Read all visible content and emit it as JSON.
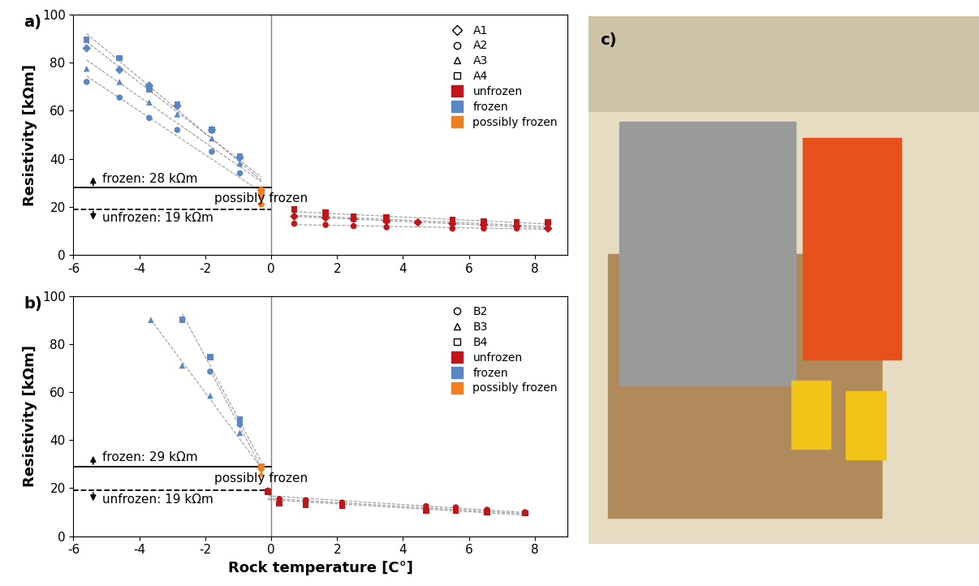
{
  "chart_data": [
    {
      "type": "scatter",
      "title": "a)",
      "ylabel": "Resistivity [kΩm]",
      "xlim": [
        -6,
        9
      ],
      "xticks": [
        -6,
        -4,
        -2,
        0,
        2,
        4,
        6,
        8
      ],
      "ylim": [
        0,
        100
      ],
      "yticks": [
        0,
        20,
        40,
        60,
        80,
        100
      ],
      "vline": 0,
      "legend": "upper right",
      "classes": [
        {
          "name": "unfrozen",
          "color": "#C0161B"
        },
        {
          "name": "frozen",
          "color": "#5B86C5"
        },
        {
          "name": "possibly frozen",
          "color": "#F07F22"
        }
      ],
      "thresholds": [
        {
          "value": 28,
          "label": "frozen: 28 kΩm",
          "line_style": "solid",
          "direction": "up"
        },
        {
          "value": 19,
          "label": "unfrozen: 19 kΩm",
          "line_style": "dashed",
          "direction": "down"
        }
      ],
      "between_label": "possibly frozen",
      "series": [
        {
          "name": "A1",
          "marker": "diamond",
          "line_style": "dashed",
          "x": [
            -5.6,
            -4.6,
            -3.7,
            -2.85,
            -1.8,
            -0.95,
            -0.3,
            0.7,
            1.65,
            2.5,
            3.5,
            4.45,
            5.5,
            6.45,
            7.45,
            8.4
          ],
          "values": [
            86,
            77,
            70.5,
            62,
            52,
            40.5,
            27,
            16,
            15.5,
            15,
            14,
            13.5,
            13,
            12.5,
            12,
            11
          ],
          "colors": [
            "#5B86C5",
            "#5B86C5",
            "#5B86C5",
            "#5B86C5",
            "#5B86C5",
            "#5B86C5",
            "#F07F22",
            "#C0161B",
            "#C0161B",
            "#C0161B",
            "#C0161B",
            "#C0161B",
            "#C0161B",
            "#C0161B",
            "#C0161B",
            "#C0161B"
          ]
        },
        {
          "name": "A2",
          "marker": "circle",
          "line_style": "dashed",
          "x": [
            -5.6,
            -4.6,
            -3.7,
            -2.85,
            -1.8,
            -0.95,
            -0.3,
            0.7,
            1.65,
            2.5,
            3.5,
            5.5,
            6.45,
            7.45,
            8.4
          ],
          "values": [
            72,
            65.5,
            57,
            52,
            43,
            34,
            21,
            13,
            12.5,
            12,
            11.5,
            11,
            11,
            11,
            11
          ],
          "colors": [
            "#5B86C5",
            "#5B86C5",
            "#5B86C5",
            "#5B86C5",
            "#5B86C5",
            "#5B86C5",
            "#F07F22",
            "#C0161B",
            "#C0161B",
            "#C0161B",
            "#C0161B",
            "#C0161B",
            "#C0161B",
            "#C0161B",
            "#C0161B"
          ]
        },
        {
          "name": "A3",
          "marker": "triangle",
          "line_style": "dashed",
          "x": [
            -5.6,
            -4.6,
            -3.7,
            -2.85,
            -1.8,
            -0.95,
            -0.3,
            0.7,
            1.65,
            2.5,
            3.5,
            5.5,
            6.45,
            7.45,
            8.4
          ],
          "values": [
            77.5,
            72,
            63.5,
            58.5,
            48.5,
            38,
            24.5,
            17,
            16,
            15,
            14.5,
            13.5,
            13,
            12.5,
            12
          ],
          "colors": [
            "#5B86C5",
            "#5B86C5",
            "#5B86C5",
            "#5B86C5",
            "#5B86C5",
            "#5B86C5",
            "#F07F22",
            "#C0161B",
            "#C0161B",
            "#C0161B",
            "#C0161B",
            "#C0161B",
            "#C0161B",
            "#C0161B",
            "#C0161B"
          ]
        },
        {
          "name": "A4",
          "marker": "square",
          "line_style": "dashed",
          "x": [
            -5.6,
            -4.6,
            -3.7,
            -2.85,
            -1.8,
            -0.95,
            -0.3,
            0.7,
            1.65,
            2.5,
            3.5,
            5.5,
            6.45,
            7.45,
            8.4
          ],
          "values": [
            89.5,
            82,
            69,
            62.5,
            52,
            41,
            25.5,
            19,
            17.5,
            16,
            15.5,
            14.5,
            14,
            13.5,
            13.5
          ],
          "colors": [
            "#5B86C5",
            "#5B86C5",
            "#5B86C5",
            "#5B86C5",
            "#5B86C5",
            "#5B86C5",
            "#F07F22",
            "#C0161B",
            "#C0161B",
            "#C0161B",
            "#C0161B",
            "#C0161B",
            "#C0161B",
            "#C0161B",
            "#C0161B"
          ]
        }
      ]
    },
    {
      "type": "scatter",
      "title": "b)",
      "xlabel": "Rock temperature [C°]",
      "ylabel": "Resistivity [kΩm]",
      "xlim": [
        -6,
        9
      ],
      "xticks": [
        -6,
        -4,
        -2,
        0,
        2,
        4,
        6,
        8
      ],
      "ylim": [
        0,
        100
      ],
      "yticks": [
        0,
        20,
        40,
        60,
        80,
        100
      ],
      "vline": 0,
      "legend": "upper right",
      "classes": [
        {
          "name": "unfrozen",
          "color": "#C0161B"
        },
        {
          "name": "frozen",
          "color": "#5B86C5"
        },
        {
          "name": "possibly frozen",
          "color": "#F07F22"
        }
      ],
      "thresholds": [
        {
          "value": 29,
          "label": "frozen: 29 kΩm",
          "line_style": "solid",
          "direction": "up"
        },
        {
          "value": 19,
          "label": "unfrozen: 19 kΩm",
          "line_style": "dashed",
          "direction": "down"
        }
      ],
      "between_label": "possibly frozen",
      "series": [
        {
          "name": "B2",
          "marker": "circle",
          "line_style": "dashed",
          "x": [
            -1.85,
            -0.95,
            -0.3,
            -0.1,
            0.25,
            1.05,
            2.15,
            4.7,
            5.6,
            6.55,
            7.7
          ],
          "values": [
            68.5,
            46.5,
            28,
            19,
            15.5,
            15,
            14,
            12.5,
            12,
            11,
            10
          ],
          "colors": [
            "#5B86C5",
            "#5B86C5",
            "#F07F22",
            "#C0161B",
            "#C0161B",
            "#C0161B",
            "#C0161B",
            "#C0161B",
            "#C0161B",
            "#C0161B",
            "#C0161B"
          ]
        },
        {
          "name": "B3",
          "marker": "triangle",
          "line_style": "dashed",
          "x": [
            -3.65,
            -2.7,
            -1.85,
            -0.95,
            -0.3,
            -0.1,
            0.25,
            1.05,
            2.15,
            4.7,
            5.6,
            6.55,
            7.7
          ],
          "values": [
            90,
            71,
            58.5,
            43,
            26,
            18.5,
            14,
            14,
            13.5,
            11,
            11,
            10.5,
            10
          ],
          "colors": [
            "#5B86C5",
            "#5B86C5",
            "#5B86C5",
            "#5B86C5",
            "#F07F22",
            "#C0161B",
            "#C0161B",
            "#C0161B",
            "#C0161B",
            "#C0161B",
            "#C0161B",
            "#C0161B",
            "#C0161B"
          ]
        },
        {
          "name": "B4",
          "marker": "square",
          "line_style": "dashed",
          "x": [
            -2.7,
            -1.85,
            -0.95,
            -0.3,
            -0.1,
            0.25,
            1.05,
            2.15,
            4.7,
            5.6,
            6.55,
            7.7
          ],
          "values": [
            90,
            74.5,
            48.5,
            29,
            18.5,
            13.5,
            13,
            12.5,
            10.5,
            10.5,
            10,
            9.5
          ],
          "colors": [
            "#5B86C5",
            "#5B86C5",
            "#5B86C5",
            "#F07F22",
            "#C0161B",
            "#C0161B",
            "#C0161B",
            "#C0161B",
            "#C0161B",
            "#C0161B",
            "#C0161B",
            "#C0161B"
          ]
        }
      ]
    }
  ],
  "image_panel": {
    "label": "c)"
  }
}
